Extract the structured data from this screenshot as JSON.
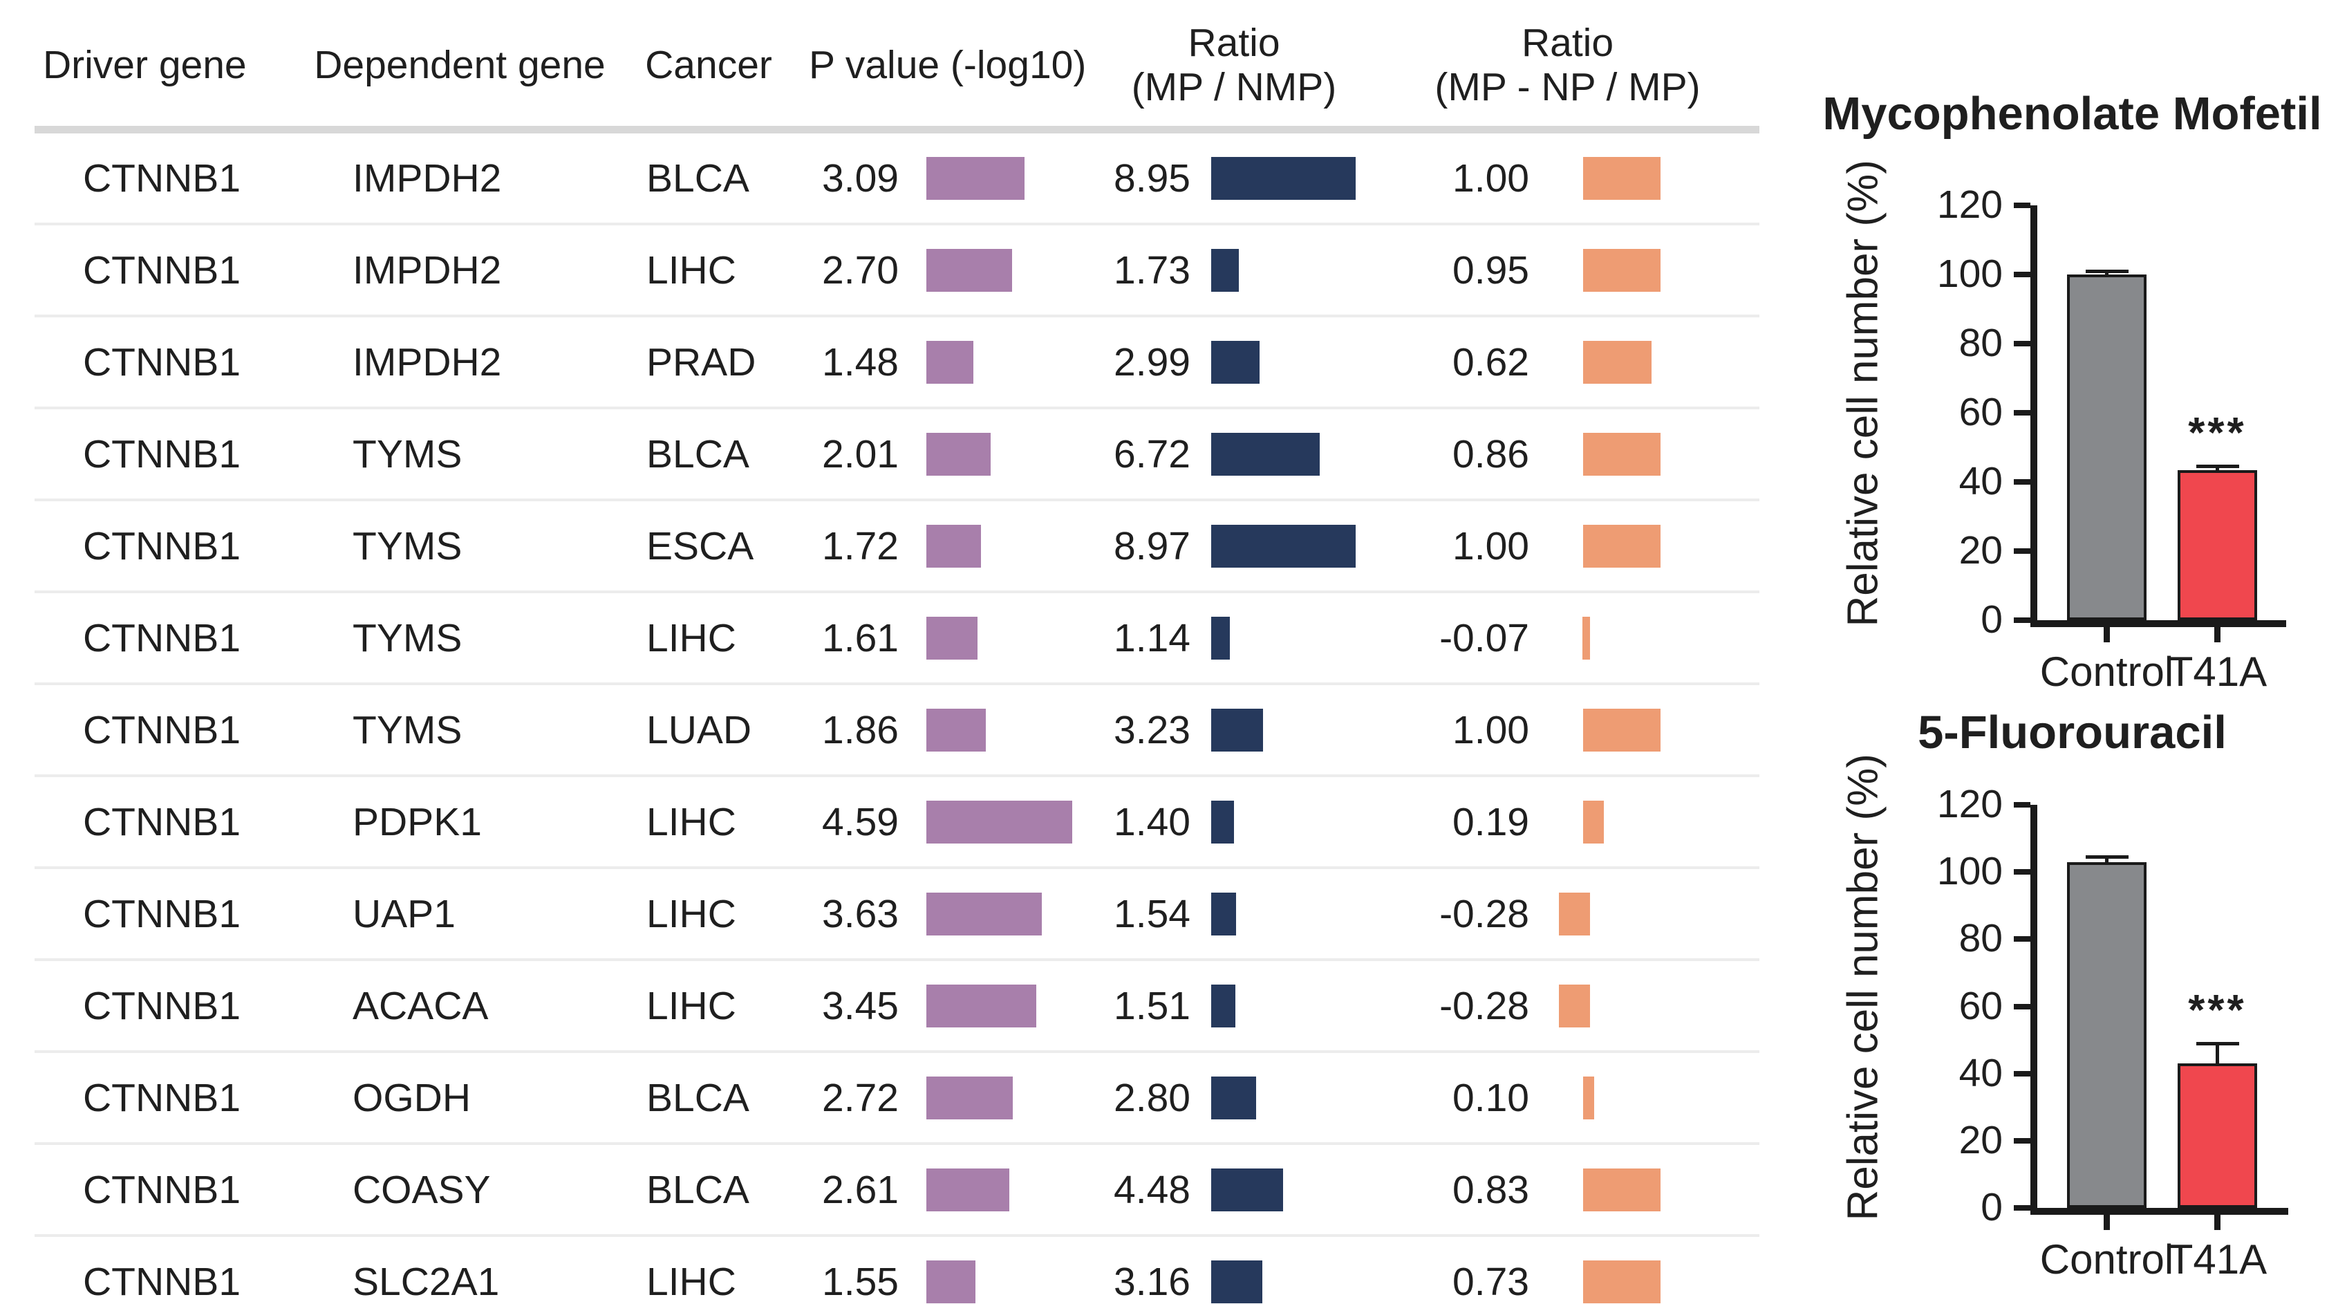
{
  "colors": {
    "purple": "#a87fab",
    "navy": "#26395c",
    "orange": "#ee9c73",
    "gray": "#87898c",
    "red": "#f0474e",
    "separator": "#ececec",
    "header_rule": "#d8d8d8",
    "axis": "#1a1a1a",
    "text": "#1f1f1f"
  },
  "table": {
    "headers": {
      "driver": "Driver gene",
      "dependent": "Dependent gene",
      "cancer": "Cancer",
      "p_value": "P value (-log10)",
      "ratio1_line1": "Ratio",
      "ratio1_line2": "(MP / NMP)",
      "ratio2_line1": "Ratio",
      "ratio2_line2": "(MP - NP / MP)"
    },
    "rows": [
      {
        "driver": "CTNNB1",
        "dependent": "IMPDH2",
        "cancer": "BLCA",
        "p": 3.09,
        "r1": 8.95,
        "r2": 1.0
      },
      {
        "driver": "CTNNB1",
        "dependent": "IMPDH2",
        "cancer": "LIHC",
        "p": 2.7,
        "r1": 1.73,
        "r2": 0.95
      },
      {
        "driver": "CTNNB1",
        "dependent": "IMPDH2",
        "cancer": "PRAD",
        "p": 1.48,
        "r1": 2.99,
        "r2": 0.62
      },
      {
        "driver": "CTNNB1",
        "dependent": "TYMS",
        "cancer": "BLCA",
        "p": 2.01,
        "r1": 6.72,
        "r2": 0.86
      },
      {
        "driver": "CTNNB1",
        "dependent": "TYMS",
        "cancer": "ESCA",
        "p": 1.72,
        "r1": 8.97,
        "r2": 1.0
      },
      {
        "driver": "CTNNB1",
        "dependent": "TYMS",
        "cancer": "LIHC",
        "p": 1.61,
        "r1": 1.14,
        "r2": -0.07
      },
      {
        "driver": "CTNNB1",
        "dependent": "TYMS",
        "cancer": "LUAD",
        "p": 1.86,
        "r1": 3.23,
        "r2": 1.0
      },
      {
        "driver": "CTNNB1",
        "dependent": "PDPK1",
        "cancer": "LIHC",
        "p": 4.59,
        "r1": 1.4,
        "r2": 0.19
      },
      {
        "driver": "CTNNB1",
        "dependent": "UAP1",
        "cancer": "LIHC",
        "p": 3.63,
        "r1": 1.54,
        "r2": -0.28
      },
      {
        "driver": "CTNNB1",
        "dependent": "ACACA",
        "cancer": "LIHC",
        "p": 3.45,
        "r1": 1.51,
        "r2": -0.28
      },
      {
        "driver": "CTNNB1",
        "dependent": "OGDH",
        "cancer": "BLCA",
        "p": 2.72,
        "r1": 2.8,
        "r2": 0.1
      },
      {
        "driver": "CTNNB1",
        "dependent": "COASY",
        "cancer": "BLCA",
        "p": 2.61,
        "r1": 4.48,
        "r2": 0.83
      },
      {
        "driver": "CTNNB1",
        "dependent": "SLC2A1",
        "cancer": "LIHC",
        "p": 1.55,
        "r1": 3.16,
        "r2": 0.73
      }
    ]
  },
  "charts": [
    {
      "title": "Mycophenolate Mofetil",
      "y_label": "Relative cell number (%)",
      "y_ticks": [
        0,
        20,
        40,
        60,
        80,
        100,
        120
      ],
      "y_max": 120,
      "bars": [
        {
          "label": "Control",
          "value": 100,
          "error": 1.5,
          "color_key": "gray",
          "sig": ""
        },
        {
          "label": "T41A",
          "value": 43.5,
          "error": 1.5,
          "color_key": "red",
          "sig": "***"
        }
      ]
    },
    {
      "title": "5-Fluorouracil",
      "y_label": "Relative cell number (%)",
      "y_ticks": [
        0,
        20,
        40,
        60,
        80,
        100,
        120
      ],
      "y_max": 120,
      "bars": [
        {
          "label": "Control",
          "value": 103,
          "error": 2,
          "color_key": "gray",
          "sig": ""
        },
        {
          "label": "T41A",
          "value": 43,
          "error": 6.5,
          "color_key": "red",
          "sig": "***"
        }
      ]
    }
  ],
  "chart_data": [
    {
      "type": "table",
      "title": "",
      "columns": [
        "Driver gene",
        "Dependent gene",
        "Cancer",
        "P value (-log10)",
        "Ratio (MP / NMP)",
        "Ratio (MP - NP / MP)"
      ],
      "rows": [
        [
          "CTNNB1",
          "IMPDH2",
          "BLCA",
          3.09,
          8.95,
          1.0
        ],
        [
          "CTNNB1",
          "IMPDH2",
          "LIHC",
          2.7,
          1.73,
          0.95
        ],
        [
          "CTNNB1",
          "IMPDH2",
          "PRAD",
          1.48,
          2.99,
          0.62
        ],
        [
          "CTNNB1",
          "TYMS",
          "BLCA",
          2.01,
          6.72,
          0.86
        ],
        [
          "CTNNB1",
          "TYMS",
          "ESCA",
          1.72,
          8.97,
          1.0
        ],
        [
          "CTNNB1",
          "TYMS",
          "LIHC",
          1.61,
          1.14,
          -0.07
        ],
        [
          "CTNNB1",
          "TYMS",
          "LUAD",
          1.86,
          3.23,
          1.0
        ],
        [
          "CTNNB1",
          "PDPK1",
          "LIHC",
          4.59,
          1.4,
          0.19
        ],
        [
          "CTNNB1",
          "UAP1",
          "LIHC",
          3.63,
          1.54,
          -0.28
        ],
        [
          "CTNNB1",
          "ACACA",
          "LIHC",
          3.45,
          1.51,
          -0.28
        ],
        [
          "CTNNB1",
          "OGDH",
          "BLCA",
          2.72,
          2.8,
          0.1
        ],
        [
          "CTNNB1",
          "COASY",
          "BLCA",
          2.61,
          4.48,
          0.83
        ],
        [
          "CTNNB1",
          "SLC2A1",
          "LIHC",
          1.55,
          3.16,
          0.73
        ]
      ]
    },
    {
      "type": "bar",
      "title": "Mycophenolate Mofetil",
      "categories": [
        "Control",
        "T41A"
      ],
      "values": [
        100,
        43.5
      ],
      "errors": [
        1.5,
        1.5
      ],
      "annotations": [
        "",
        "***"
      ],
      "xlabel": "",
      "ylabel": "Relative cell number (%)",
      "ylim": [
        0,
        120
      ],
      "yticks": [
        0,
        20,
        40,
        60,
        80,
        100,
        120
      ],
      "grid": false,
      "legend": false,
      "bar_colors": [
        "#87898c",
        "#f0474e"
      ]
    },
    {
      "type": "bar",
      "title": "5-Fluorouracil",
      "categories": [
        "Control",
        "T41A"
      ],
      "values": [
        103,
        43
      ],
      "errors": [
        2,
        6.5
      ],
      "annotations": [
        "",
        "***"
      ],
      "xlabel": "",
      "ylabel": "Relative cell number (%)",
      "ylim": [
        0,
        120
      ],
      "yticks": [
        0,
        20,
        40,
        60,
        80,
        100,
        120
      ],
      "grid": false,
      "legend": false,
      "bar_colors": [
        "#87898c",
        "#f0474e"
      ]
    }
  ]
}
